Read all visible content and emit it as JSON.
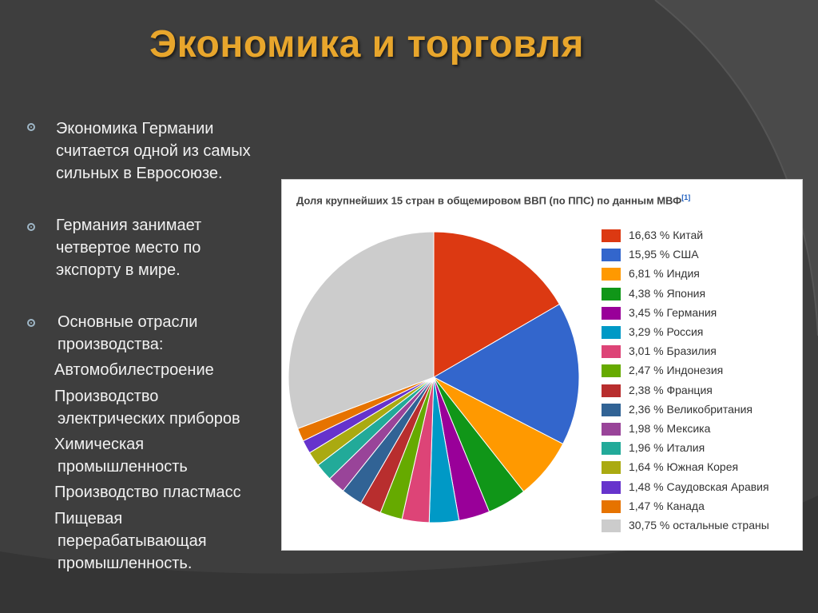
{
  "slide": {
    "title": "Экономика и торговля",
    "colors": {
      "background": "#3e3e3e",
      "title": "#e8a62c",
      "text": "#f2f2f2"
    },
    "bullets": [
      {
        "line1": " Экономика Германии",
        "line2": "считается одной из самых",
        "line3": "сильных в Евросоюзе."
      },
      {
        "line1": " Германия занимает",
        "line2": "четвертое место по",
        "line3": "экспорту в мире."
      },
      {
        "line1": "Основные отрасли",
        "line2": "производства:"
      }
    ],
    "industries": [
      {
        "line1": "Автомобилестроение"
      },
      {
        "line1": "Производство",
        "line2": "электрических приборов"
      },
      {
        "line1": "Химическая",
        "line2": "промышленность"
      },
      {
        "line1": "Производство пластмасс"
      },
      {
        "line1": "Пищевая",
        "line2": "перерабатывающая",
        "line3": "промышленность."
      }
    ]
  },
  "chart_data": {
    "type": "pie",
    "title": "Доля крупнейших 15 стран в общемировом ВВП (по ППС) по данным МВФ",
    "title_ref": "[1]",
    "legend_position": "right",
    "slices": [
      {
        "label": "16,63 % Китай",
        "value": 16.63,
        "color": "#dc3912"
      },
      {
        "label": "15,95 % США",
        "value": 15.95,
        "color": "#3366cc"
      },
      {
        "label": "6,81 % Индия",
        "value": 6.81,
        "color": "#ff9900"
      },
      {
        "label": "4,38 % Япония",
        "value": 4.38,
        "color": "#109618"
      },
      {
        "label": "3,45 % Германия",
        "value": 3.45,
        "color": "#990099"
      },
      {
        "label": "3,29 % Россия",
        "value": 3.29,
        "color": "#0099c6"
      },
      {
        "label": "3,01 % Бразилия",
        "value": 3.01,
        "color": "#dd4477"
      },
      {
        "label": "2,47 % Индонезия",
        "value": 2.47,
        "color": "#66aa00"
      },
      {
        "label": "2,38 % Франция",
        "value": 2.38,
        "color": "#b82e2e"
      },
      {
        "label": "2,36 % Великобритания",
        "value": 2.36,
        "color": "#316395"
      },
      {
        "label": "1,98 % Мексика",
        "value": 1.98,
        "color": "#994499"
      },
      {
        "label": "1,96 % Италия",
        "value": 1.96,
        "color": "#22aa99"
      },
      {
        "label": "1,64 % Южная Корея",
        "value": 1.64,
        "color": "#aaaa11"
      },
      {
        "label": "1,48 % Саудовская Аравия",
        "value": 1.48,
        "color": "#6633cc"
      },
      {
        "label": "1,47 % Канада",
        "value": 1.47,
        "color": "#e67300"
      },
      {
        "label": "30,75 % остальные страны",
        "value": 30.75,
        "color": "#cccccc"
      }
    ]
  }
}
